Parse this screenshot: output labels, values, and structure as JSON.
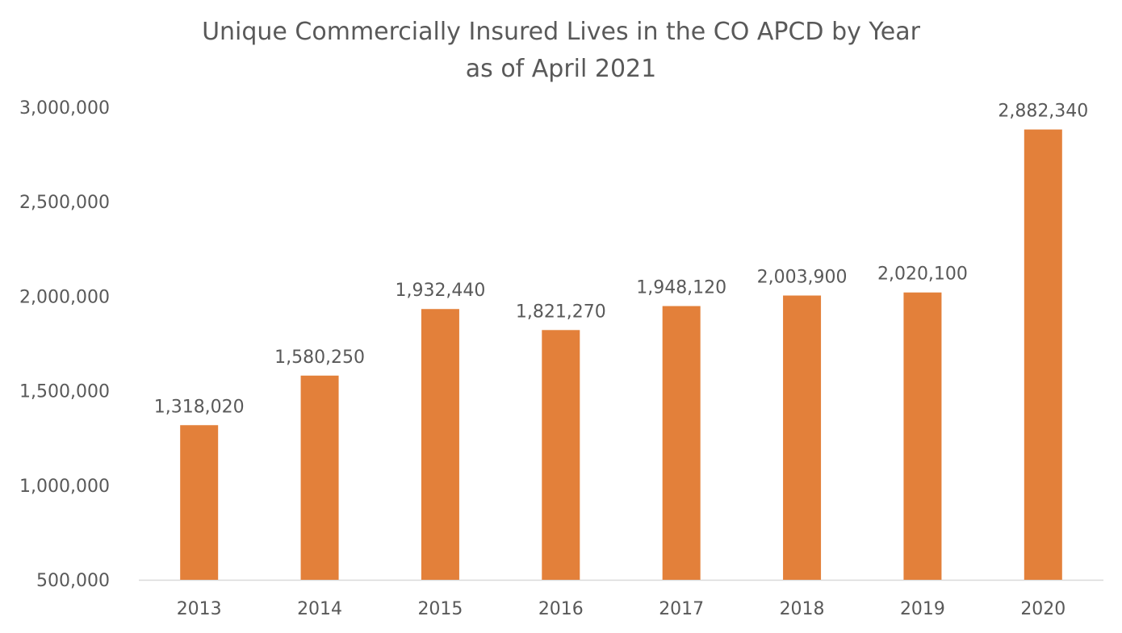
{
  "chart_data": {
    "type": "bar",
    "title": "Unique Commercially Insured Lives in the CO APCD by Year",
    "subtitle": "as of April 2021",
    "categories": [
      "2013",
      "2014",
      "2015",
      "2016",
      "2017",
      "2018",
      "2019",
      "2020"
    ],
    "values": [
      1318020,
      1580250,
      1932440,
      1821270,
      1948120,
      2003900,
      2020100,
      2882340
    ],
    "data_labels": [
      "1,318,020",
      "1,580,250",
      "1,932,440",
      "1,821,270",
      "1,948,120",
      "2,003,900",
      "2,020,100",
      "2,882,340"
    ],
    "ylim": [
      500000,
      3000000
    ],
    "yticks": [
      500000,
      1000000,
      1500000,
      2000000,
      2500000,
      3000000
    ],
    "ytick_labels": [
      "500,000",
      "1,000,000",
      "1,500,000",
      "2,000,000",
      "2,500,000",
      "3,000,000"
    ],
    "xlabel": "",
    "ylabel": "",
    "grid": false,
    "legend": "none",
    "bar_color": "#E3803A"
  }
}
